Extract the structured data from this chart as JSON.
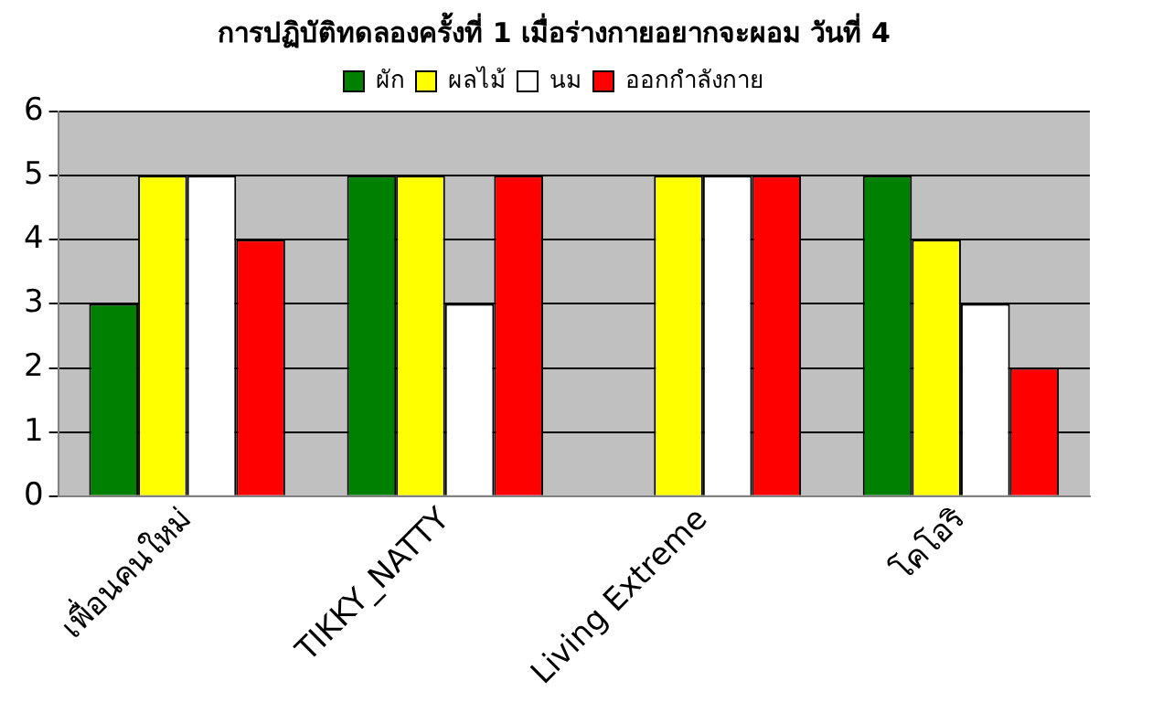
{
  "chart_data": {
    "type": "bar",
    "title": "การปฏิบัติทดลองครั้งที่ 1 เมื่อร่างกายอยากจะผอม วันที่ 4",
    "categories": [
      "เพื่อนคนใหม่",
      "TIKKY_NATTY",
      "Living Extreme",
      "โคโอริ"
    ],
    "series": [
      {
        "name": "ผัก",
        "color": "#008000",
        "values": [
          3,
          5,
          0,
          5
        ]
      },
      {
        "name": "ผลไม้",
        "color": "#ffff00",
        "values": [
          5,
          5,
          5,
          4
        ]
      },
      {
        "name": "นม",
        "color": "#ffffff",
        "values": [
          5,
          3,
          5,
          3
        ]
      },
      {
        "name": "ออกกำลังกาย",
        "color": "#ff0000",
        "values": [
          4,
          5,
          5,
          2
        ]
      }
    ],
    "ylim": [
      0,
      6
    ],
    "yticks": [
      0,
      1,
      2,
      3,
      4,
      5,
      6
    ],
    "grid": "y",
    "legend": "top"
  }
}
